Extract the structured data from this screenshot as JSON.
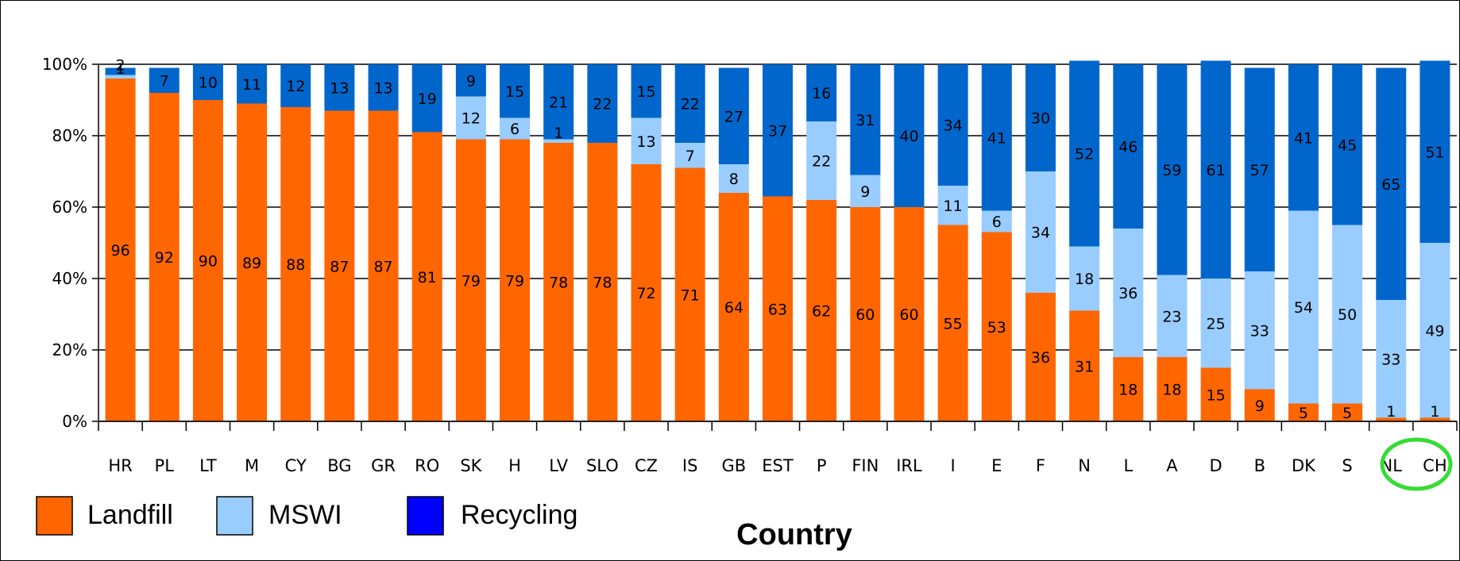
{
  "chart_data": {
    "type": "bar",
    "stacked": true,
    "normalized_percent": true,
    "xlabel": "Country",
    "ylabel": "",
    "ylim": [
      0,
      100
    ],
    "y_ticks": [
      "0%",
      "20%",
      "40%",
      "60%",
      "80%",
      "100%"
    ],
    "grid": true,
    "legend_position": "bottom-left",
    "highlighted_category": "CH",
    "categories": [
      "HR",
      "PL",
      "LT",
      "M",
      "CY",
      "BG",
      "GR",
      "RO",
      "SK",
      "H",
      "LV",
      "SLO",
      "CZ",
      "IS",
      "GB",
      "EST",
      "P",
      "FIN",
      "IRL",
      "I",
      "E",
      "F",
      "N",
      "L",
      "A",
      "D",
      "B",
      "DK",
      "S",
      "NL",
      "CH"
    ],
    "series": [
      {
        "name": "Landfill",
        "color": "#ff6600",
        "values": [
          96,
          92,
          90,
          89,
          88,
          87,
          87,
          81,
          79,
          79,
          78,
          78,
          72,
          71,
          64,
          63,
          62,
          60,
          60,
          55,
          53,
          36,
          31,
          18,
          18,
          15,
          9,
          5,
          5,
          1,
          1
        ]
      },
      {
        "name": "MSWI",
        "color": "#99ccff",
        "values": [
          1,
          0,
          0,
          0,
          0,
          0,
          0,
          0,
          12,
          6,
          1,
          0,
          13,
          7,
          8,
          0,
          22,
          9,
          0,
          11,
          6,
          34,
          18,
          36,
          23,
          25,
          33,
          54,
          50,
          33,
          49
        ]
      },
      {
        "name": "Recycling",
        "color": "#0066cc",
        "legend_color": "#0000ff",
        "values": [
          2,
          7,
          10,
          11,
          12,
          13,
          13,
          19,
          9,
          15,
          21,
          22,
          15,
          22,
          27,
          37,
          16,
          31,
          40,
          34,
          41,
          30,
          52,
          46,
          59,
          61,
          57,
          41,
          45,
          65,
          51
        ]
      }
    ],
    "printed_labels": {
      "Landfill": [
        96,
        92,
        90,
        89,
        88,
        87,
        87,
        81,
        79,
        79,
        78,
        78,
        72,
        71,
        64,
        63,
        62,
        60,
        60,
        55,
        53,
        36,
        31,
        18,
        18,
        15,
        9,
        5,
        5,
        1,
        1
      ],
      "MSWI": [
        1,
        null,
        null,
        null,
        null,
        null,
        null,
        null,
        12,
        6,
        1,
        null,
        13,
        7,
        8,
        null,
        22,
        9,
        null,
        11,
        6,
        34,
        18,
        36,
        23,
        25,
        33,
        54,
        50,
        33,
        49
      ],
      "Recycling": [
        2,
        7,
        10,
        11,
        12,
        13,
        13,
        19,
        9,
        15,
        21,
        22,
        15,
        22,
        27,
        37,
        16,
        31,
        40,
        34,
        41,
        30,
        52,
        46,
        59,
        61,
        57,
        41,
        45,
        65,
        51
      ]
    }
  },
  "legend": [
    {
      "label": "Landfill",
      "color": "#ff6600"
    },
    {
      "label": "MSWI",
      "color": "#99ccff"
    },
    {
      "label": "Recycling",
      "color": "#0000ff"
    }
  ]
}
